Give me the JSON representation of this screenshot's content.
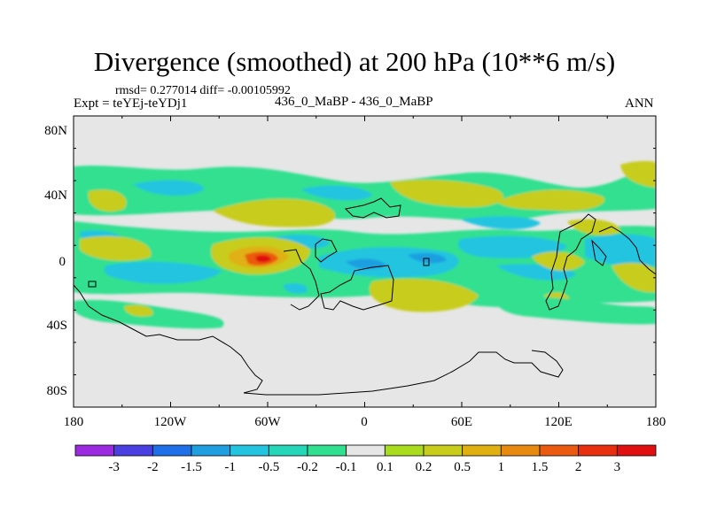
{
  "title": "Divergence (smoothed) at 200 hPa (10**6 m/s)",
  "stats": "rmsd= 0.277014 diff= -0.00105992",
  "experiment": "Expt = teYEj-teYDj1",
  "case_label": "436_0_MaBP - 436_0_MaBP",
  "season": "ANN",
  "y_ticks": [
    "80N",
    "40N",
    "0",
    "40S",
    "80S"
  ],
  "x_ticks": [
    "180",
    "120W",
    "60W",
    "0",
    "60E",
    "120E",
    "180"
  ],
  "colorbar": {
    "labels": [
      "-3",
      "-2",
      "-1.5",
      "-1",
      "-0.5",
      "-0.2",
      "-0.1",
      "0.1",
      "0.2",
      "0.5",
      "1",
      "1.5",
      "2",
      "3"
    ],
    "colors": [
      "#9b2ae0",
      "#4a3fe0",
      "#1f6fe8",
      "#1f9fe0",
      "#22c4e0",
      "#26d6b8",
      "#30e090",
      "#e6e6e6",
      "#a8dc1c",
      "#c8cc1a",
      "#e0b012",
      "#e88a10",
      "#ea5a10",
      "#e83010",
      "#e01010"
    ]
  },
  "background_color": "#e6e6e6"
}
